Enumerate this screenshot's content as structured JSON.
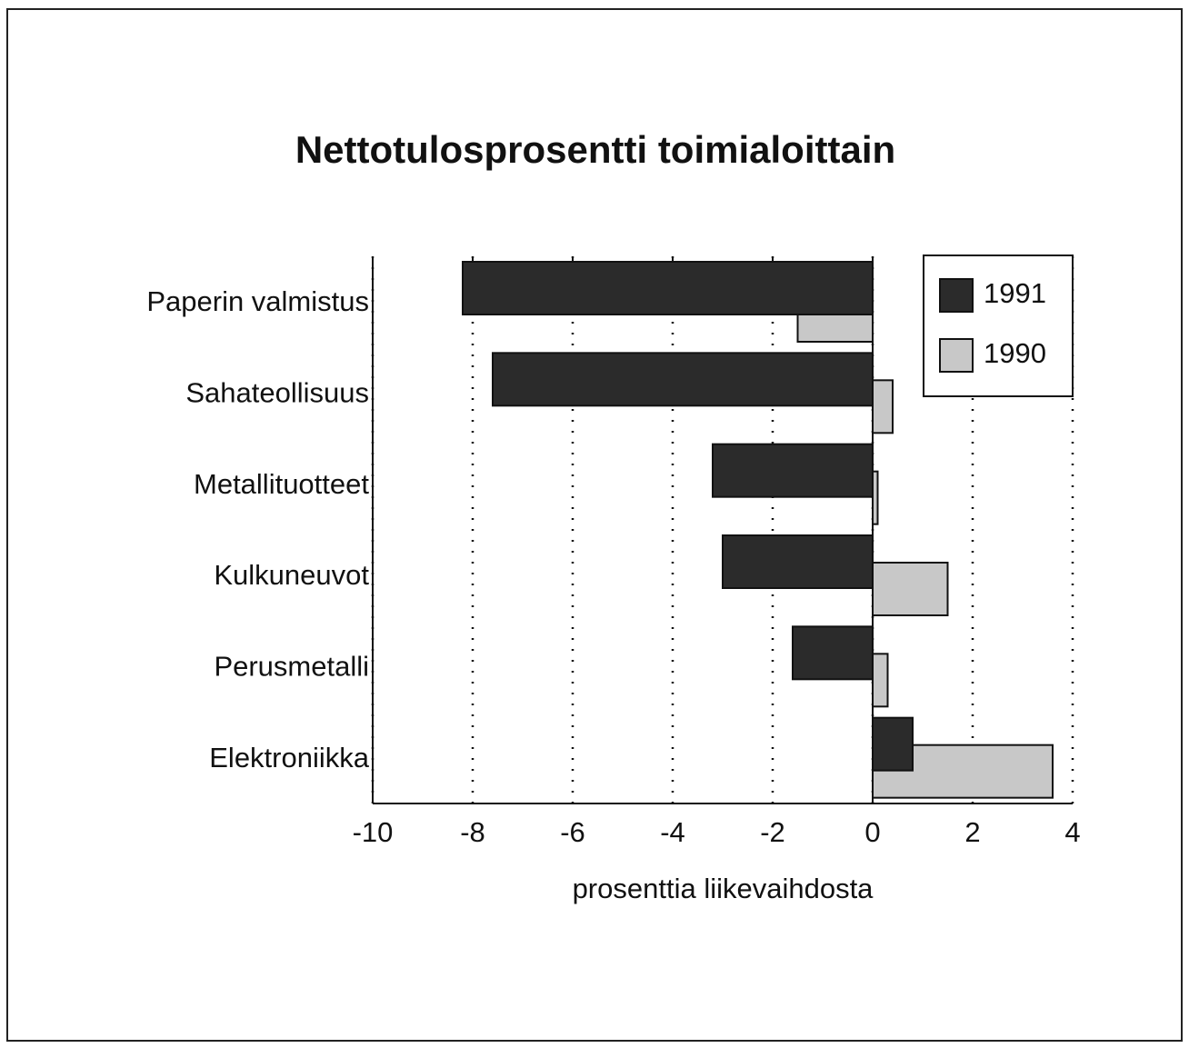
{
  "chart_data": {
    "type": "bar",
    "orientation": "horizontal",
    "title": "Nettotulosprosentti toimialoittain",
    "x_label": "prosenttia liikevaihdosta",
    "categories": [
      "Paperin valmistus",
      "Sahateollisuus",
      "Metallituotteet",
      "Kulkuneuvot",
      "Perusmetalli",
      "Elektroniikka"
    ],
    "series": [
      {
        "name": "1991",
        "color": "#2b2b2b",
        "values": [
          -8.2,
          -7.6,
          -3.2,
          -3.0,
          -1.6,
          0.8
        ]
      },
      {
        "name": "1990",
        "color": "#c8c8c8",
        "values": [
          -1.5,
          0.4,
          0.1,
          1.5,
          0.3,
          3.6
        ]
      }
    ],
    "xlim": [
      -10,
      4
    ],
    "xticks": [
      -10,
      -8,
      -6,
      -4,
      -2,
      0,
      2,
      4
    ],
    "grid": true,
    "legend": "upper right"
  }
}
